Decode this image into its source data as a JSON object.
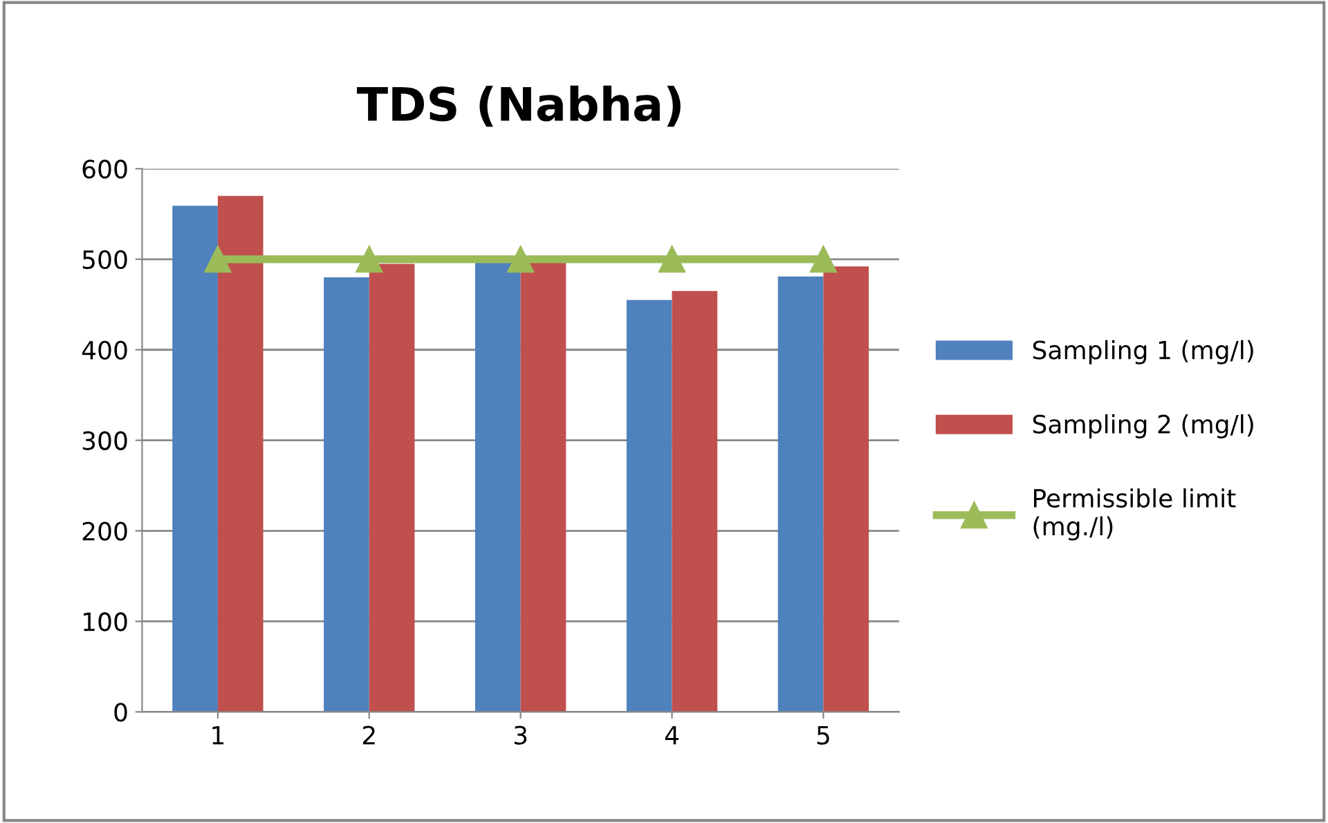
{
  "chart_data": {
    "type": "bar",
    "title": "TDS (Nabha)",
    "categories": [
      "1",
      "2",
      "3",
      "4",
      "5"
    ],
    "series": [
      {
        "name": "Sampling 1 (mg/l)",
        "color": "#4f81bd",
        "values": [
          559,
          480,
          496,
          455,
          481
        ]
      },
      {
        "name": "Sampling 2 (mg/l)",
        "color": "#c0504d",
        "values": [
          570,
          495,
          496,
          465,
          492
        ]
      },
      {
        "name": "Permissible limit\n(mg./l)",
        "color": "#9bbb59",
        "type": "line",
        "marker": "triangle",
        "values": [
          500,
          500,
          500,
          500,
          500
        ]
      }
    ],
    "ylim": [
      0,
      600
    ],
    "yticks": [
      0,
      100,
      200,
      300,
      400,
      500,
      600
    ],
    "grid": "y",
    "legend": "right"
  }
}
